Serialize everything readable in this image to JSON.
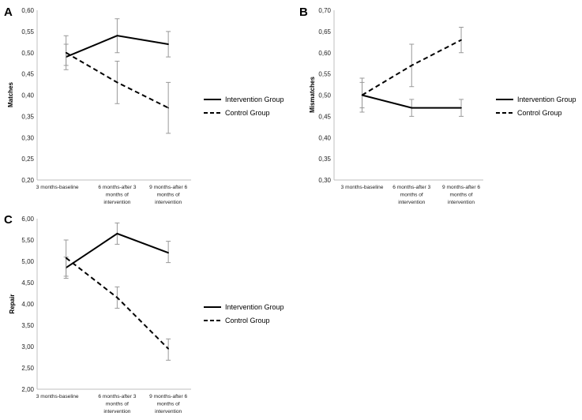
{
  "chart_data": [
    {
      "type": "line",
      "panel": "A",
      "title": "",
      "xlabel": "",
      "ylabel": "Matches",
      "ylim": [
        0.2,
        0.6
      ],
      "ytick_step": 0.05,
      "ytick_labels": [
        "0,20",
        "0,25",
        "0,30",
        "0,35",
        "0,40",
        "0,45",
        "0,50",
        "0,55",
        "0,60"
      ],
      "categories": [
        [
          "3 months-baseline"
        ],
        [
          "6 months-after 3",
          "months of",
          "intervention"
        ],
        [
          "9 months-after 6",
          "months of",
          "intervention"
        ]
      ],
      "series": [
        {
          "name": "Intervention Group",
          "style": "solid",
          "values": [
            0.49,
            0.54,
            0.52
          ],
          "err_low": [
            0.46,
            0.5,
            0.49
          ],
          "err_high": [
            0.52,
            0.58,
            0.55
          ]
        },
        {
          "name": "Control Group",
          "style": "dashed",
          "values": [
            0.5,
            0.43,
            0.37
          ],
          "err_low": [
            0.47,
            0.38,
            0.31
          ],
          "err_high": [
            0.54,
            0.48,
            0.43
          ]
        }
      ],
      "legend": "right"
    },
    {
      "type": "line",
      "panel": "B",
      "title": "",
      "xlabel": "",
      "ylabel": "Mismatches",
      "ylim": [
        0.3,
        0.7
      ],
      "ytick_step": 0.05,
      "ytick_labels": [
        "0,30",
        "0,35",
        "0,40",
        "0,45",
        "0,50",
        "0,55",
        "0,60",
        "0,65",
        "0,70"
      ],
      "categories": [
        [
          "3 months-baseline"
        ],
        [
          "6 months-after 3",
          "months of",
          "intervention"
        ],
        [
          "9 months-after 6",
          "months of",
          "intervention"
        ]
      ],
      "series": [
        {
          "name": "Intervention Group",
          "style": "solid",
          "values": [
            0.5,
            0.47,
            0.47
          ],
          "err_low": [
            0.47,
            0.45,
            0.45
          ],
          "err_high": [
            0.53,
            0.49,
            0.49
          ]
        },
        {
          "name": "Control Group",
          "style": "dashed",
          "values": [
            0.5,
            0.57,
            0.63
          ],
          "err_low": [
            0.46,
            0.52,
            0.6
          ],
          "err_high": [
            0.54,
            0.62,
            0.66
          ]
        }
      ],
      "legend": "right"
    },
    {
      "type": "line",
      "panel": "C",
      "title": "",
      "xlabel": "",
      "ylabel": "Repair",
      "ylim": [
        2.0,
        6.0
      ],
      "ytick_step": 0.5,
      "ytick_labels": [
        "2,00",
        "2,50",
        "3,00",
        "3,50",
        "4,00",
        "4,50",
        "5,00",
        "5,50",
        "6,00"
      ],
      "categories": [
        [
          "3 months-baseline"
        ],
        [
          "6 months-after 3",
          "months of",
          "intervention"
        ],
        [
          "9 months-after 6",
          "months of",
          "intervention"
        ]
      ],
      "series": [
        {
          "name": "Intervention Group",
          "style": "solid",
          "values": [
            4.85,
            5.65,
            5.2
          ],
          "err_low": [
            4.6,
            5.4,
            4.97
          ],
          "err_high": [
            5.1,
            5.9,
            5.47
          ]
        },
        {
          "name": "Control Group",
          "style": "dashed",
          "values": [
            5.08,
            4.15,
            2.95
          ],
          "err_low": [
            4.65,
            3.9,
            2.68
          ],
          "err_high": [
            5.5,
            4.4,
            3.18
          ]
        }
      ],
      "legend": "right"
    }
  ]
}
